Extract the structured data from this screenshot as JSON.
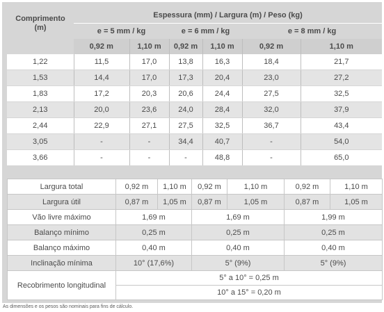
{
  "top_table": {
    "header_main": "Espessura (mm) / Largura (m) / Peso (kg)",
    "col0_label": "Comprimento (m)",
    "groups": [
      "e = 5 mm / kg",
      "e = 6 mm / kg",
      "e = 8 mm / kg"
    ],
    "widths": [
      "0,92 m",
      "1,10 m",
      "0,92 m",
      "1,10 m",
      "0,92 m",
      "1,10 m"
    ],
    "rows": [
      [
        "1,22",
        "11,5",
        "17,0",
        "13,8",
        "16,3",
        "18,4",
        "21,7"
      ],
      [
        "1,53",
        "14,4",
        "17,0",
        "17,3",
        "20,4",
        "23,0",
        "27,2"
      ],
      [
        "1,83",
        "17,2",
        "20,3",
        "20,6",
        "24,4",
        "27,5",
        "32,5"
      ],
      [
        "2,13",
        "20,0",
        "23,6",
        "24,0",
        "28,4",
        "32,0",
        "37,9"
      ],
      [
        "2,44",
        "22,9",
        "27,1",
        "27,5",
        "32,5",
        "36,7",
        "43,4"
      ],
      [
        "3,05",
        "-",
        "-",
        "34,4",
        "40,7",
        "-",
        "54,0"
      ],
      [
        "3,66",
        "-",
        "-",
        "-",
        "48,8",
        "-",
        "65,0"
      ]
    ]
  },
  "bottom_table": {
    "largura_total": {
      "label": "Largura total",
      "values": [
        "0,92 m",
        "1,10 m",
        "0,92 m",
        "1,10 m",
        "0,92 m",
        "1,10 m"
      ]
    },
    "largura_util": {
      "label": "Largura útil",
      "values": [
        "0,87 m",
        "1,05 m",
        "0,87 m",
        "1,05 m",
        "0,87 m",
        "1,05 m"
      ]
    },
    "vao_livre": {
      "label": "Vão livre máximo",
      "values": [
        "1,69 m",
        "1,69 m",
        "1,99 m"
      ]
    },
    "balanco_min": {
      "label": "Balanço mínimo",
      "values": [
        "0,25 m",
        "0,25 m",
        "0,25 m"
      ]
    },
    "balanco_max": {
      "label": "Balanço máximo",
      "values": [
        "0,40 m",
        "0,40 m",
        "0,40 m"
      ]
    },
    "inclinacao": {
      "label": "Inclinação mínima",
      "values": [
        "10° (17,6%)",
        "5° (9%)",
        "5° (9%)"
      ]
    },
    "recobrimento": {
      "label": "Recobrimento longitudinal",
      "values": [
        "5° a 10° = 0,25 m",
        "10° a 15° = 0,20 m"
      ]
    }
  },
  "footnote": "As dimensões e os pesos são nominais para fins de cálculo."
}
